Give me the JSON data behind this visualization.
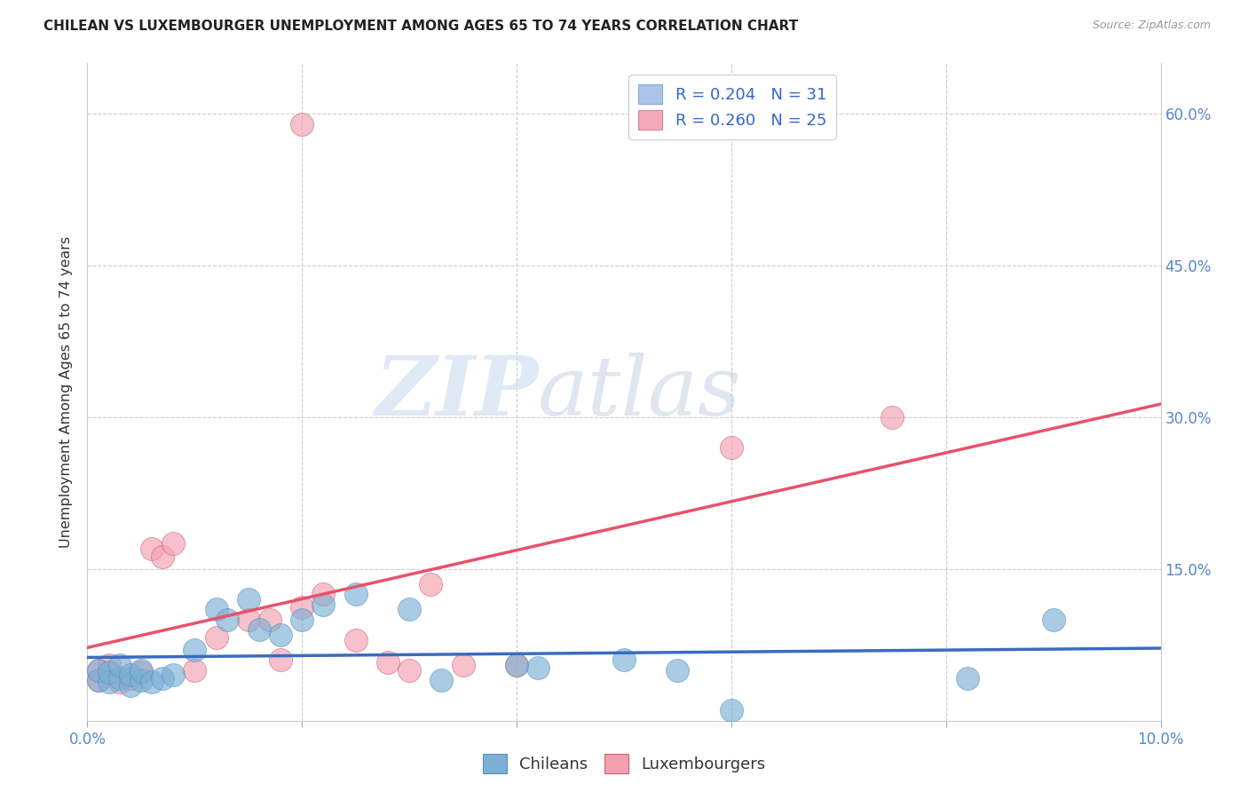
{
  "title": "CHILEAN VS LUXEMBOURGER UNEMPLOYMENT AMONG AGES 65 TO 74 YEARS CORRELATION CHART",
  "source": "Source: ZipAtlas.com",
  "ylabel": "Unemployment Among Ages 65 to 74 years",
  "xlim": [
    0.0,
    0.1
  ],
  "ylim": [
    0.0,
    0.65
  ],
  "legend_color1": "#aac4e8",
  "legend_color2": "#f4a8b8",
  "chilean_color": "#7bafd4",
  "luxembourger_color": "#f4a0b0",
  "line_color1": "#3a6bbf",
  "line_color2": "#e8526a",
  "watermark_zip": "ZIP",
  "watermark_atlas": "atlas",
  "chileans_x": [
    0.001,
    0.001,
    0.002,
    0.002,
    0.003,
    0.003,
    0.004,
    0.004,
    0.005,
    0.005,
    0.006,
    0.007,
    0.008,
    0.01,
    0.012,
    0.013,
    0.015,
    0.016,
    0.018,
    0.02,
    0.022,
    0.025,
    0.03,
    0.033,
    0.04,
    0.042,
    0.05,
    0.055,
    0.06,
    0.082,
    0.09
  ],
  "chileans_y": [
    0.04,
    0.05,
    0.038,
    0.048,
    0.042,
    0.055,
    0.035,
    0.045,
    0.04,
    0.05,
    0.038,
    0.042,
    0.045,
    0.07,
    0.11,
    0.1,
    0.12,
    0.09,
    0.085,
    0.1,
    0.115,
    0.125,
    0.11,
    0.04,
    0.055,
    0.052,
    0.06,
    0.05,
    0.01,
    0.042,
    0.1
  ],
  "luxembourgers_x": [
    0.001,
    0.001,
    0.002,
    0.003,
    0.004,
    0.005,
    0.006,
    0.007,
    0.008,
    0.01,
    0.012,
    0.015,
    0.017,
    0.018,
    0.02,
    0.022,
    0.025,
    0.028,
    0.03,
    0.032,
    0.035,
    0.04,
    0.06,
    0.075,
    0.02
  ],
  "luxembourgers_y": [
    0.04,
    0.05,
    0.055,
    0.038,
    0.042,
    0.048,
    0.17,
    0.162,
    0.175,
    0.05,
    0.082,
    0.1,
    0.1,
    0.06,
    0.112,
    0.125,
    0.08,
    0.058,
    0.05,
    0.135,
    0.055,
    0.055,
    0.27,
    0.3,
    0.59
  ],
  "chilean_R": 0.204,
  "chilean_N": 31,
  "luxembourger_R": 0.26,
  "luxembourger_N": 25
}
